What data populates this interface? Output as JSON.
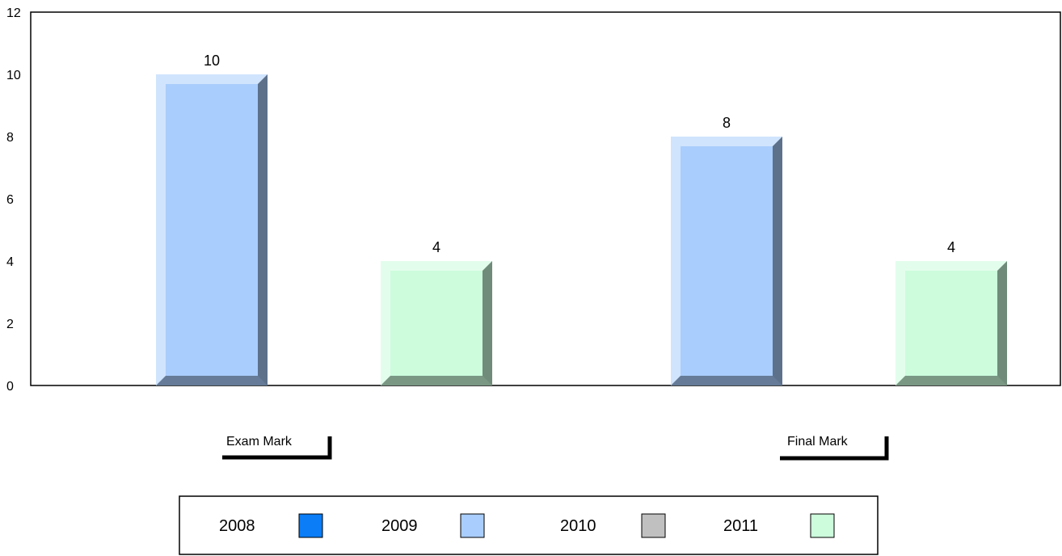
{
  "chart_data": {
    "type": "bar",
    "categories": [
      "Exam Mark",
      "Final Mark"
    ],
    "series": [
      {
        "name": "2008",
        "values": [
          null,
          null
        ],
        "color": "#0a7df7"
      },
      {
        "name": "2009",
        "values": [
          10,
          8
        ],
        "color": "#a9cdfc"
      },
      {
        "name": "2010",
        "values": [
          null,
          null
        ],
        "color": "#c0c0c0"
      },
      {
        "name": "2011",
        "values": [
          4,
          4
        ],
        "color": "#ccfcdc"
      }
    ],
    "data_labels": [
      {
        "series": "2009",
        "category": "Exam Mark",
        "text": "10"
      },
      {
        "series": "2011",
        "category": "Exam Mark",
        "text": "4"
      },
      {
        "series": "2009",
        "category": "Final Mark",
        "text": "8"
      },
      {
        "series": "2011",
        "category": "Final Mark",
        "text": "4"
      }
    ],
    "y_ticks": [
      "0",
      "2",
      "4",
      "6",
      "8",
      "10",
      "12"
    ],
    "ylim": [
      0,
      12
    ],
    "grid": false,
    "legend_position": "bottom",
    "title": "",
    "xlabel": "",
    "ylabel": ""
  }
}
